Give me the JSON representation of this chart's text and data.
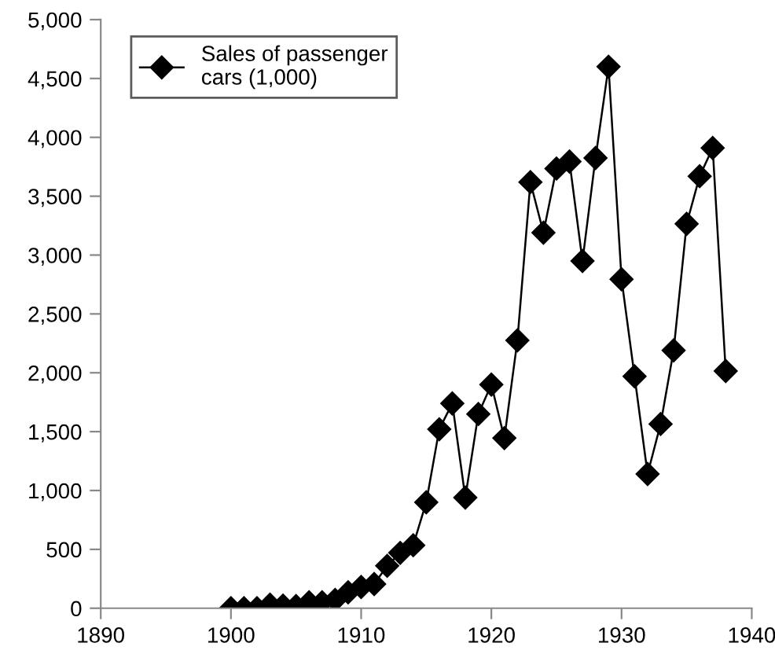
{
  "chart_data": {
    "type": "line",
    "x": [
      1900,
      1901,
      1902,
      1903,
      1904,
      1905,
      1906,
      1907,
      1908,
      1909,
      1910,
      1911,
      1912,
      1913,
      1914,
      1915,
      1916,
      1917,
      1918,
      1919,
      1920,
      1921,
      1922,
      1923,
      1924,
      1925,
      1926,
      1927,
      1928,
      1929,
      1930,
      1931,
      1932,
      1933,
      1934,
      1935,
      1936,
      1937,
      1938
    ],
    "series": [
      {
        "name": "Sales of passenger\ncars (1,000)",
        "color": "#000000",
        "values": [
          0,
          0,
          0,
          30,
          22,
          18,
          50,
          50,
          70,
          135,
          180,
          205,
          360,
          470,
          535,
          900,
          1520,
          1740,
          940,
          1650,
          1900,
          1445,
          2275,
          3620,
          3190,
          3735,
          3795,
          2950,
          3825,
          4600,
          2795,
          1970,
          1140,
          1565,
          2190,
          3265,
          3670,
          3910,
          2015
        ]
      }
    ],
    "xlim": [
      1890,
      1940
    ],
    "xticks": [
      1890,
      1900,
      1910,
      1920,
      1930,
      1940
    ],
    "ylim": [
      0,
      5000
    ],
    "yticks": [
      {
        "value": 0,
        "label": "0"
      },
      {
        "value": 500,
        "label": "500"
      },
      {
        "value": 1000,
        "label": "1,000"
      },
      {
        "value": 1500,
        "label": "1,500"
      },
      {
        "value": 2000,
        "label": "2,000"
      },
      {
        "value": 2500,
        "label": "2,500"
      },
      {
        "value": 3000,
        "label": "3,000"
      },
      {
        "value": 3500,
        "label": "3,500"
      },
      {
        "value": 4000,
        "label": "4,000"
      },
      {
        "value": 4500,
        "label": "4,500"
      },
      {
        "value": 5000,
        "label": "5,000"
      }
    ],
    "legend": "top left",
    "marker": "diamond",
    "line_style": "solid"
  }
}
